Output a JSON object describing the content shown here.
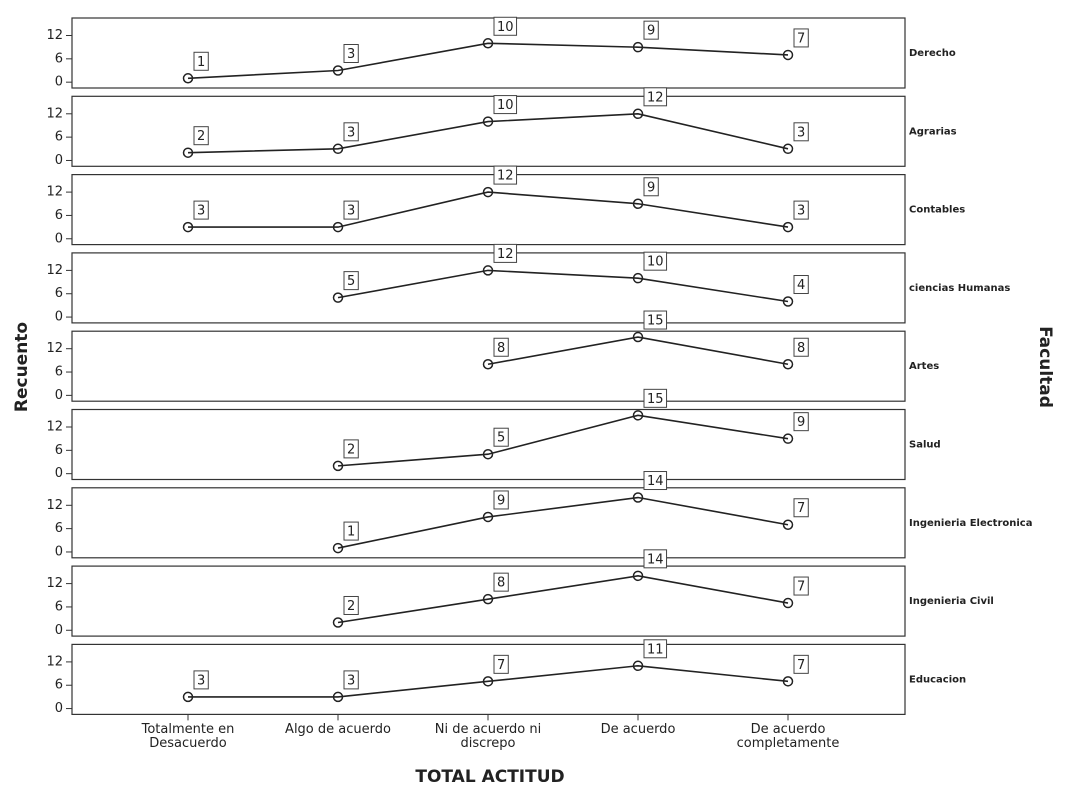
{
  "chart_data": {
    "type": "line",
    "x_label": "TOTAL ACTITUD",
    "y_label": "Recuento",
    "facet_label": "Facultad",
    "categories": [
      "Totalmente en Desacuerdo",
      "Algo de acuerdo",
      "Ni de acuerdo ni discrepo",
      "De acuerdo",
      "De acuerdo completamente"
    ],
    "ylim": [
      -1.5,
      16.5
    ],
    "yticks": [
      0,
      6,
      12
    ],
    "color": "#222222",
    "series": [
      {
        "name": "Derecho",
        "values": [
          1,
          3,
          10,
          9,
          7
        ]
      },
      {
        "name": "Agrarias",
        "values": [
          2,
          3,
          10,
          12,
          3
        ]
      },
      {
        "name": "Contables",
        "values": [
          3,
          3,
          12,
          9,
          3
        ]
      },
      {
        "name": "ciencias Humanas",
        "values": [
          null,
          5,
          12,
          10,
          4
        ]
      },
      {
        "name": "Artes",
        "values": [
          null,
          null,
          8,
          15,
          8
        ]
      },
      {
        "name": "Salud",
        "values": [
          null,
          2,
          5,
          15,
          9
        ]
      },
      {
        "name": "Ingenieria Electronica",
        "values": [
          null,
          1,
          9,
          14,
          7
        ]
      },
      {
        "name": "Ingenieria Civil",
        "values": [
          null,
          2,
          8,
          14,
          7
        ]
      },
      {
        "name": "Educacion",
        "values": [
          3,
          3,
          7,
          11,
          7
        ]
      }
    ]
  }
}
